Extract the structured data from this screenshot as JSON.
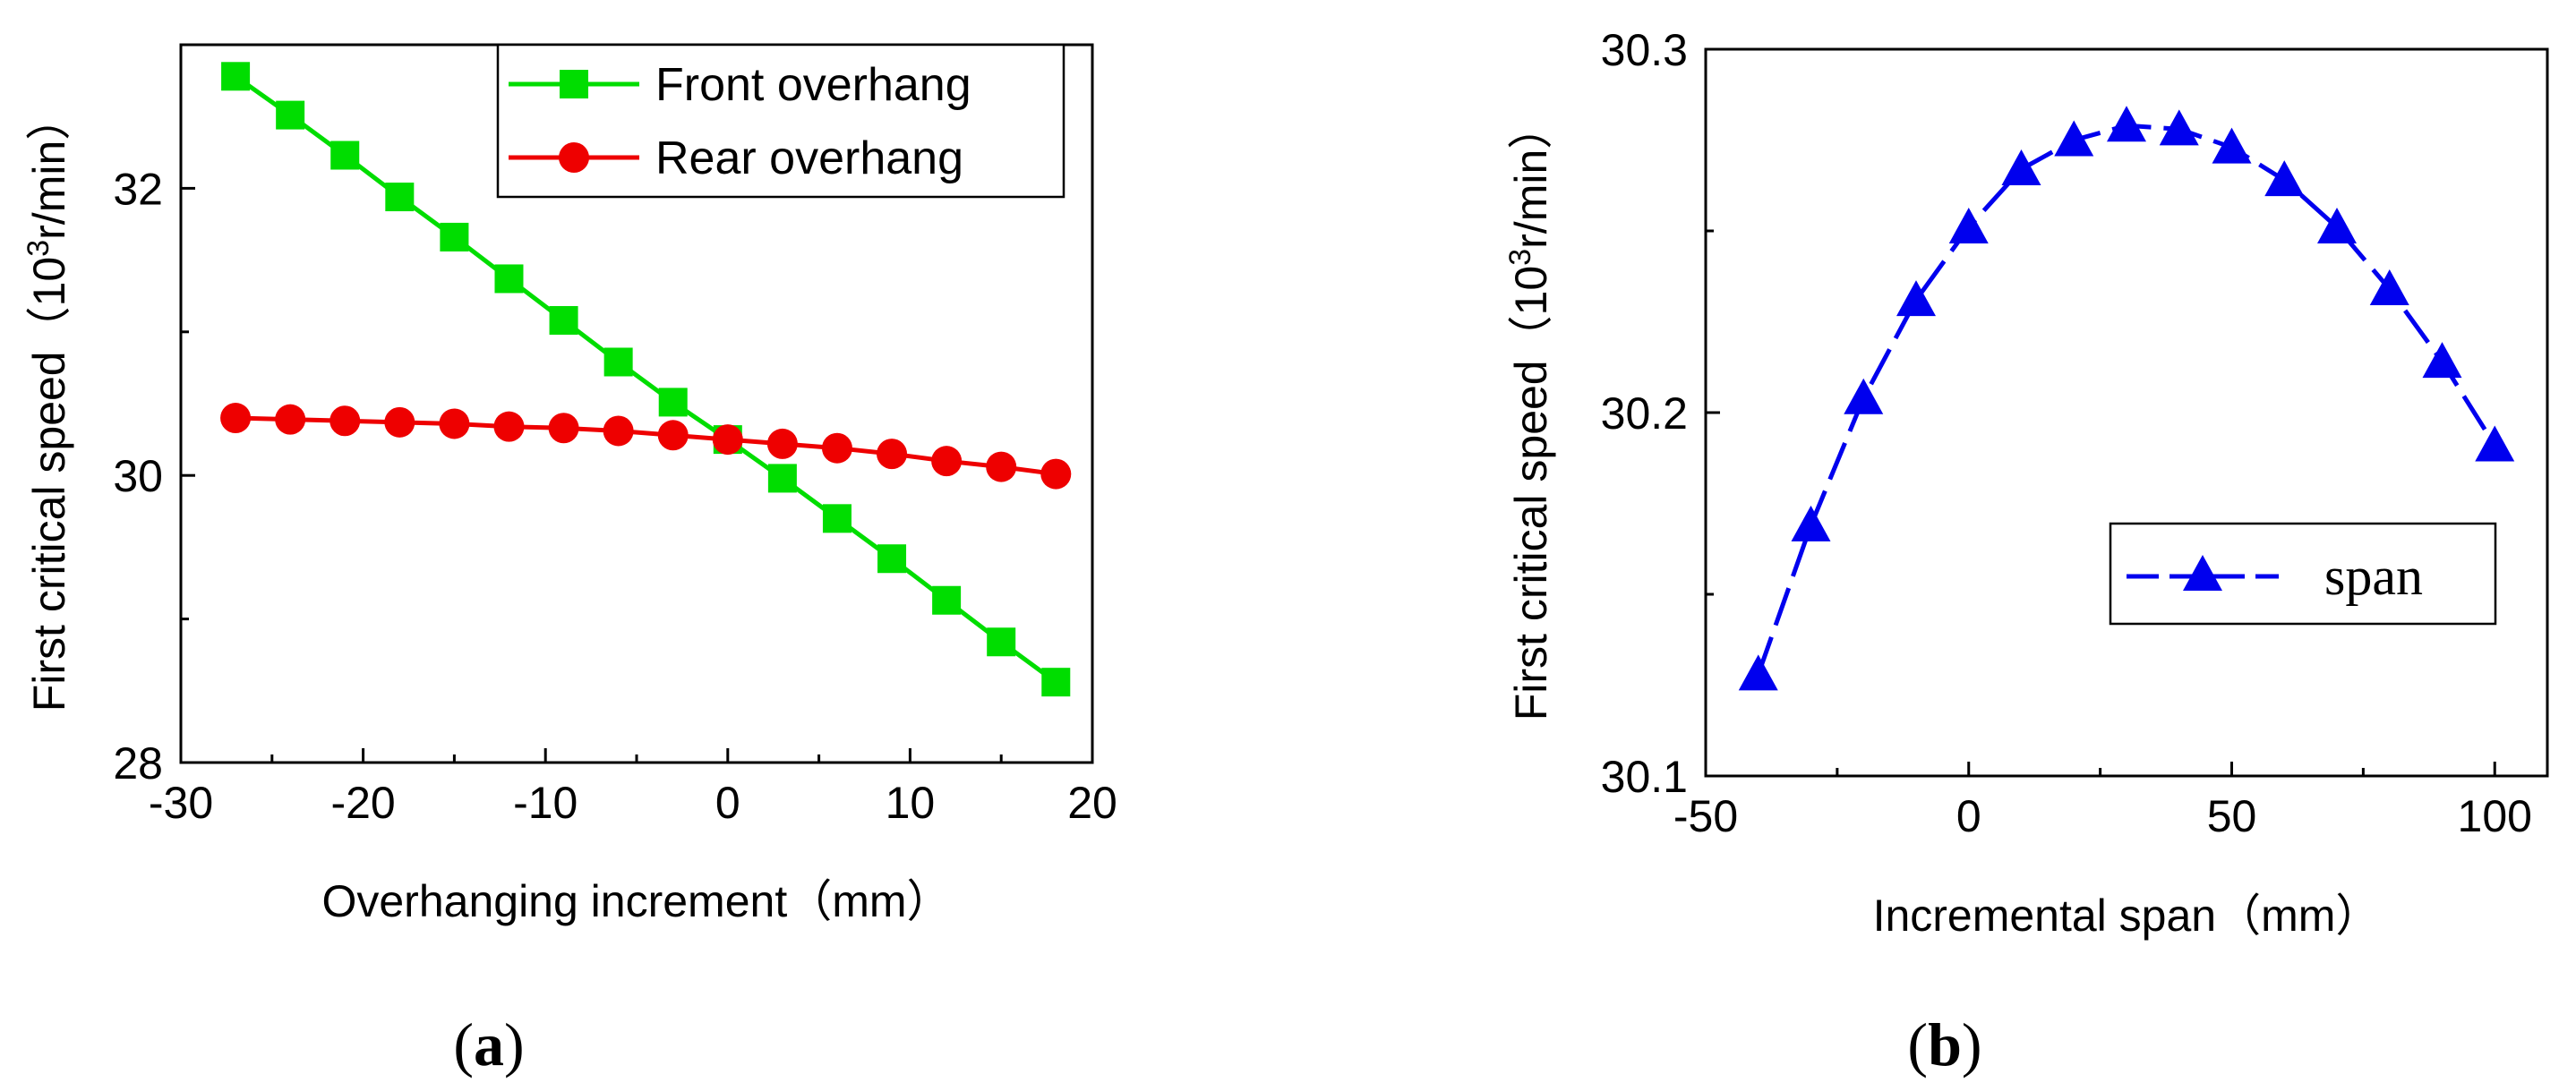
{
  "chart_data": [
    {
      "type": "line",
      "panel_label": "(a)",
      "panel_letter": "a",
      "xlabel": "Overhanging increment（mm）",
      "ylabel": "First critical speed（10³r/min）",
      "ylabel_main": "First critical speed（10",
      "ylabel_sup": "3",
      "ylabel_tail": "r/min）",
      "xlim": [
        -30,
        20
      ],
      "ylim": [
        28,
        33
      ],
      "xticks": [
        "-30",
        "-20",
        "-10",
        "0",
        "10",
        "20"
      ],
      "yticks": [
        "28",
        "30",
        "32"
      ],
      "legend_position": "top-right",
      "series": [
        {
          "name": "Front overhang",
          "color": "#00dd00",
          "marker": "square",
          "x": [
            -27,
            -24,
            -21,
            -18,
            -15,
            -12,
            -9,
            -6,
            -3,
            0,
            3,
            6,
            9,
            12,
            15,
            18
          ],
          "values": [
            32.78,
            32.51,
            32.23,
            31.94,
            31.66,
            31.37,
            31.08,
            30.79,
            30.51,
            30.25,
            29.98,
            29.7,
            29.42,
            29.13,
            28.84,
            28.56
          ]
        },
        {
          "name": "Rear overhang",
          "color": "#ee0000",
          "marker": "circle",
          "x": [
            -27,
            -24,
            -21,
            -18,
            -15,
            -12,
            -9,
            -6,
            -3,
            0,
            3,
            6,
            9,
            12,
            15,
            18
          ],
          "values": [
            30.4,
            30.39,
            30.38,
            30.37,
            30.36,
            30.34,
            30.33,
            30.31,
            30.28,
            30.25,
            30.22,
            30.19,
            30.15,
            30.1,
            30.06,
            30.01
          ]
        }
      ]
    },
    {
      "type": "line",
      "panel_label": "(b)",
      "panel_letter": "b",
      "xlabel": "Incremental span（mm）",
      "ylabel": "First critical speed（10³r/min）",
      "ylabel_main": "First critical speed（10",
      "ylabel_sup": "3",
      "ylabel_tail": "r/min）",
      "xlim": [
        -50,
        110
      ],
      "ylim": [
        30.1,
        30.3
      ],
      "xticks": [
        "-50",
        "0",
        "50",
        "100"
      ],
      "yticks": [
        "30.1",
        "30.2",
        "30.3"
      ],
      "legend_position": "center-right",
      "series": [
        {
          "name": "span",
          "color": "#0000ee",
          "marker": "triangle",
          "x": [
            -40,
            -30,
            -20,
            -10,
            0,
            10,
            20,
            30,
            40,
            50,
            60,
            70,
            80,
            90,
            100
          ],
          "values": [
            30.128,
            30.169,
            30.204,
            30.231,
            30.251,
            30.267,
            30.275,
            30.279,
            30.278,
            30.273,
            30.264,
            30.251,
            30.234,
            30.214,
            30.191
          ]
        }
      ]
    }
  ]
}
